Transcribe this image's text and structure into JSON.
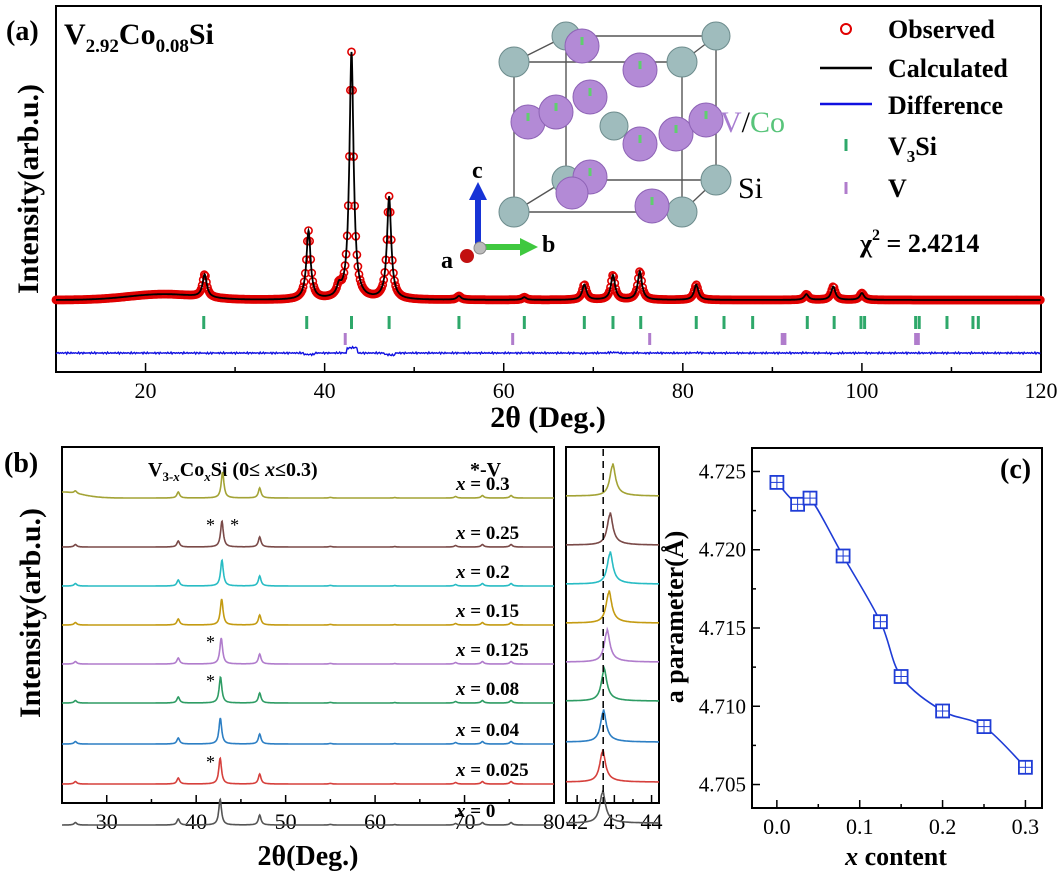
{
  "panel_labels": {
    "a": "(a)",
    "b": "(b)",
    "c": "(c)"
  },
  "chart_data": [
    {
      "type": "line",
      "panel": "a",
      "title": "V2.92Co0.08Si",
      "title_parts": {
        "base": "V",
        "sub1": "2.92",
        "mid": "Co",
        "sub2": "0.08",
        "tail": "Si"
      },
      "xlabel": "2θ (Deg.)",
      "ylabel": "Intensity(arb.u.)",
      "xlim": [
        10,
        120
      ],
      "xticks": [
        20,
        40,
        60,
        80,
        100,
        120
      ],
      "legend": {
        "observed": "Observed",
        "calculated": "Calculated",
        "difference": "Difference",
        "v3si_base": "V",
        "v3si_sub": "3",
        "v3si_tail": "Si",
        "v": "V"
      },
      "chi_label": "χ",
      "chi_sup": "2",
      "chi_value": " = 2.4214",
      "crystal_labels": {
        "v": "V",
        "slash": "/",
        "co": "Co",
        "si": "Si"
      },
      "axis_labels": {
        "a": "a",
        "b": "b",
        "c": "c"
      },
      "background": {
        "base": 10.5,
        "hump_center": 22,
        "hump_height": 1.5,
        "hump_width": 5.5
      },
      "peaks": [
        {
          "x": 26.6,
          "h": 6
        },
        {
          "x": 38.2,
          "h": 18
        },
        {
          "x": 41.6,
          "h": 2.5
        },
        {
          "x": 43.0,
          "h": 65
        },
        {
          "x": 47.2,
          "h": 27
        },
        {
          "x": 55.0,
          "h": 1
        },
        {
          "x": 62.3,
          "h": 0.7
        },
        {
          "x": 69.0,
          "h": 4
        },
        {
          "x": 72.2,
          "h": 6.5
        },
        {
          "x": 75.2,
          "h": 7.5
        },
        {
          "x": 81.5,
          "h": 4
        },
        {
          "x": 93.8,
          "h": 1.5
        },
        {
          "x": 96.8,
          "h": 3.5
        },
        {
          "x": 100.0,
          "h": 1.8
        }
      ],
      "v3si_ticks": [
        26.5,
        38.0,
        43.0,
        47.2,
        55.0,
        62.3,
        69.0,
        72.2,
        75.3,
        81.5,
        84.6,
        87.8,
        93.9,
        96.9,
        99.9,
        100.3,
        106.0,
        106.4,
        109.5,
        112.4,
        113.0
      ],
      "v_ticks": [
        42.3,
        61.0,
        76.3,
        91.1,
        91.4,
        106.0,
        106.3
      ]
    },
    {
      "type": "line",
      "panel": "b",
      "title_parts": {
        "pre": "V",
        "sub1": "3-",
        "sub_x": "x",
        "mid": "Co",
        "sub2": "x",
        "tail1": "Si (0≤ ",
        "tail_x": "x",
        "tail2": "≤0.3)"
      },
      "v_marker": "*-V",
      "xlabel": "2θ(Deg.)",
      "ylabel": "Intensity(arb.u.)",
      "xlim": [
        25,
        80
      ],
      "xticks": [
        30,
        40,
        50,
        60,
        70,
        80
      ],
      "inset_xlim": [
        41.7,
        44.2
      ],
      "inset_xticks": [
        42,
        43,
        44
      ],
      "dashed_line_x": 42.7,
      "series": [
        {
          "name": "0.3",
          "color": "#a3a335",
          "peak": 42.95,
          "star1": false,
          "star2": false
        },
        {
          "name": "0.25",
          "color": "#7a4a48",
          "peak": 42.88,
          "star1": true,
          "star2": true
        },
        {
          "name": "0.2",
          "color": "#28bcc4",
          "peak": 42.88,
          "star1": false,
          "star2": false
        },
        {
          "name": "0.15",
          "color": "#c49b12",
          "peak": 42.85,
          "star1": false,
          "star2": false
        },
        {
          "name": "0.125",
          "color": "#b07ccc",
          "peak": 42.8,
          "star1": true,
          "star2": false
        },
        {
          "name": "0.08",
          "color": "#2e9c64",
          "peak": 42.72,
          "star1": true,
          "star2": false
        },
        {
          "name": "0.04",
          "color": "#2d7fc4",
          "peak": 42.7,
          "star1": false,
          "star2": false
        },
        {
          "name": "0.025",
          "color": "#d6403c",
          "peak": 42.68,
          "star1": true,
          "star2": false
        },
        {
          "name": "0",
          "color": "#555555",
          "peak": 42.68,
          "star1": false,
          "star2": false
        }
      ],
      "series_label_prefix": "x",
      "series_label_eq": " = "
    },
    {
      "type": "line",
      "panel": "c",
      "xlabel_italic": "x",
      "xlabel_rest": " content",
      "ylabel": "a  parameter(Å)",
      "xlim": [
        -0.03,
        0.32
      ],
      "ylim": [
        4.7035,
        4.7265
      ],
      "xticks": [
        0.0,
        0.1,
        0.2,
        0.3
      ],
      "xtick_labels": [
        "0.0",
        "0.1",
        "0.2",
        "0.3"
      ],
      "yticks": [
        4.705,
        4.71,
        4.715,
        4.72,
        4.725
      ],
      "ytick_labels": [
        "4.705",
        "4.710",
        "4.715",
        "4.720",
        "4.725"
      ],
      "x": [
        0.0,
        0.025,
        0.04,
        0.08,
        0.125,
        0.15,
        0.2,
        0.25,
        0.3
      ],
      "y": [
        4.7243,
        4.7229,
        4.7233,
        4.7196,
        4.7154,
        4.7119,
        4.7097,
        4.7087,
        4.7061
      ],
      "color": "#1f3cd6"
    }
  ]
}
